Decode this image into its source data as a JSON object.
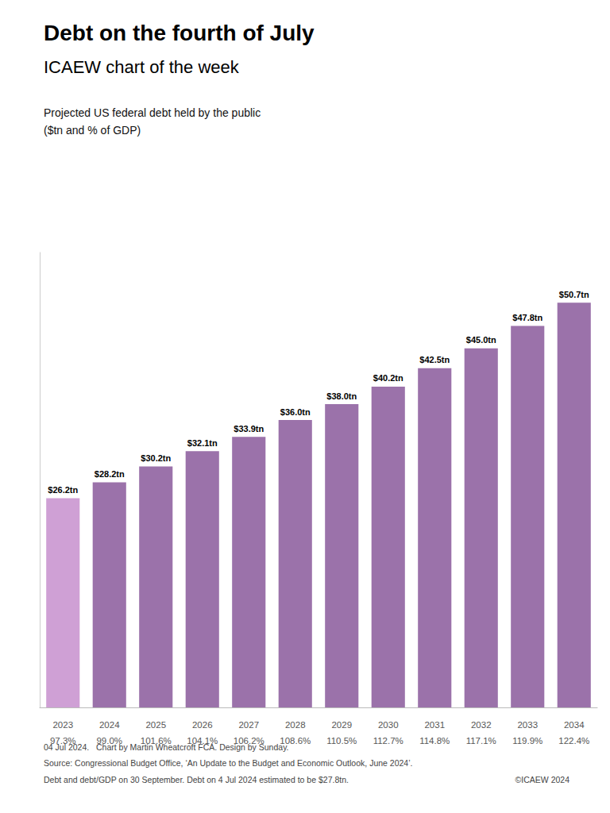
{
  "chart_data": {
    "type": "bar",
    "title": "Debt on the fourth of July",
    "subtitle": "ICAEW chart of the week",
    "annotations": [
      "Projected US federal debt held by the public\n($tn and % of GDP)",
      "04 Jul 2024.   Chart by Martin Wheatcroft FCA. Design by Sunday.",
      "Source: Congressional Budget Office, ‘An Update to the Budget and Economic Outlook, June 2024’.",
      "Debt and debt/GDP on 30 September. Debt on 4 Jul 2024 estimated to be $27.8tn.",
      "©ICAEW 2024"
    ],
    "categories": [
      "2023",
      "2024",
      "2025",
      "2026",
      "2027",
      "2028",
      "2029",
      "2030",
      "2031",
      "2032",
      "2033",
      "2034"
    ],
    "gdp_pct": [
      "97.3%",
      "99.0%",
      "101.6%",
      "104.1%",
      "106.2%",
      "108.6%",
      "110.5%",
      "112.7%",
      "114.8%",
      "117.1%",
      "119.9%",
      "122.4%"
    ],
    "values": [
      26.2,
      28.2,
      30.2,
      32.1,
      33.9,
      36.0,
      38.0,
      40.2,
      42.5,
      45.0,
      47.8,
      50.7
    ],
    "value_labels": [
      "$26.2tn",
      "$28.2tn",
      "$30.2tn",
      "$32.1tn",
      "$33.9tn",
      "$36.0tn",
      "$38.0tn",
      "$40.2tn",
      "$42.5tn",
      "$45.0tn",
      "$47.8tn",
      "$50.7tn"
    ],
    "colors": [
      "#cfa0d5",
      "#9b72aa",
      "#9b72aa",
      "#9b72aa",
      "#9b72aa",
      "#9b72aa",
      "#9b72aa",
      "#9b72aa",
      "#9b72aa",
      "#9b72aa",
      "#9b72aa",
      "#9b72aa"
    ],
    "ylim": [
      0,
      57
    ],
    "data_labels": true,
    "tick_labels": "x",
    "grid": false
  }
}
